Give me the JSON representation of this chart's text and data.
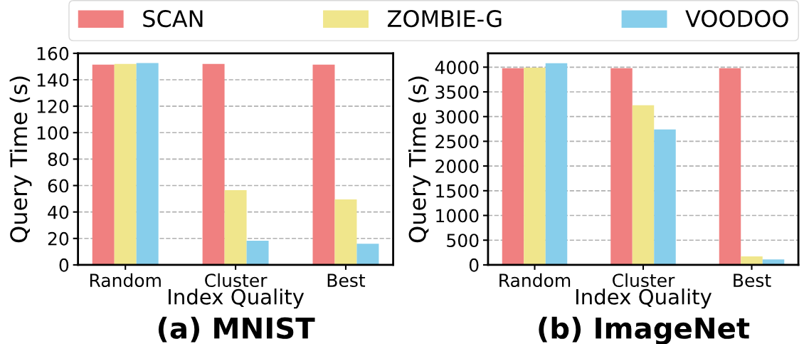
{
  "chart_data": [
    {
      "type": "bar",
      "title": "(a) MNIST",
      "xlabel": "Index Quality",
      "ylabel": "Query Time (s)",
      "categories": [
        "Random",
        "Cluster",
        "Best"
      ],
      "series": [
        {
          "name": "SCAN",
          "color": "#f08080",
          "values": [
            151.5,
            152,
            151.5
          ]
        },
        {
          "name": "ZOMBIE-G",
          "color": "#f0e68c",
          "values": [
            152,
            56.5,
            49.5
          ]
        },
        {
          "name": "VOODOO",
          "color": "#87ceeb",
          "values": [
            152.7,
            18.3,
            16
          ]
        }
      ],
      "ylim": [
        0,
        160
      ],
      "yticks": [
        0,
        20,
        40,
        60,
        80,
        100,
        120,
        140,
        160
      ],
      "grid": "y",
      "legend": "top"
    },
    {
      "type": "bar",
      "title": "(b) ImageNet",
      "xlabel": "Index Quality",
      "ylabel": "Query Time (s)",
      "categories": [
        "Random",
        "Cluster",
        "Best"
      ],
      "series": [
        {
          "color": "#f08080",
          "values": [
            3980,
            3980,
            3980
          ]
        },
        {
          "color": "#f0e68c",
          "values": [
            3990,
            3230,
            170
          ]
        },
        {
          "color": "#87ceeb",
          "values": [
            4080,
            2740,
            110
          ]
        }
      ],
      "ylim": [
        0,
        4280
      ],
      "yticks": [
        0,
        500,
        1000,
        1500,
        2000,
        2500,
        3000,
        3500,
        4000
      ],
      "grid": "y"
    }
  ]
}
